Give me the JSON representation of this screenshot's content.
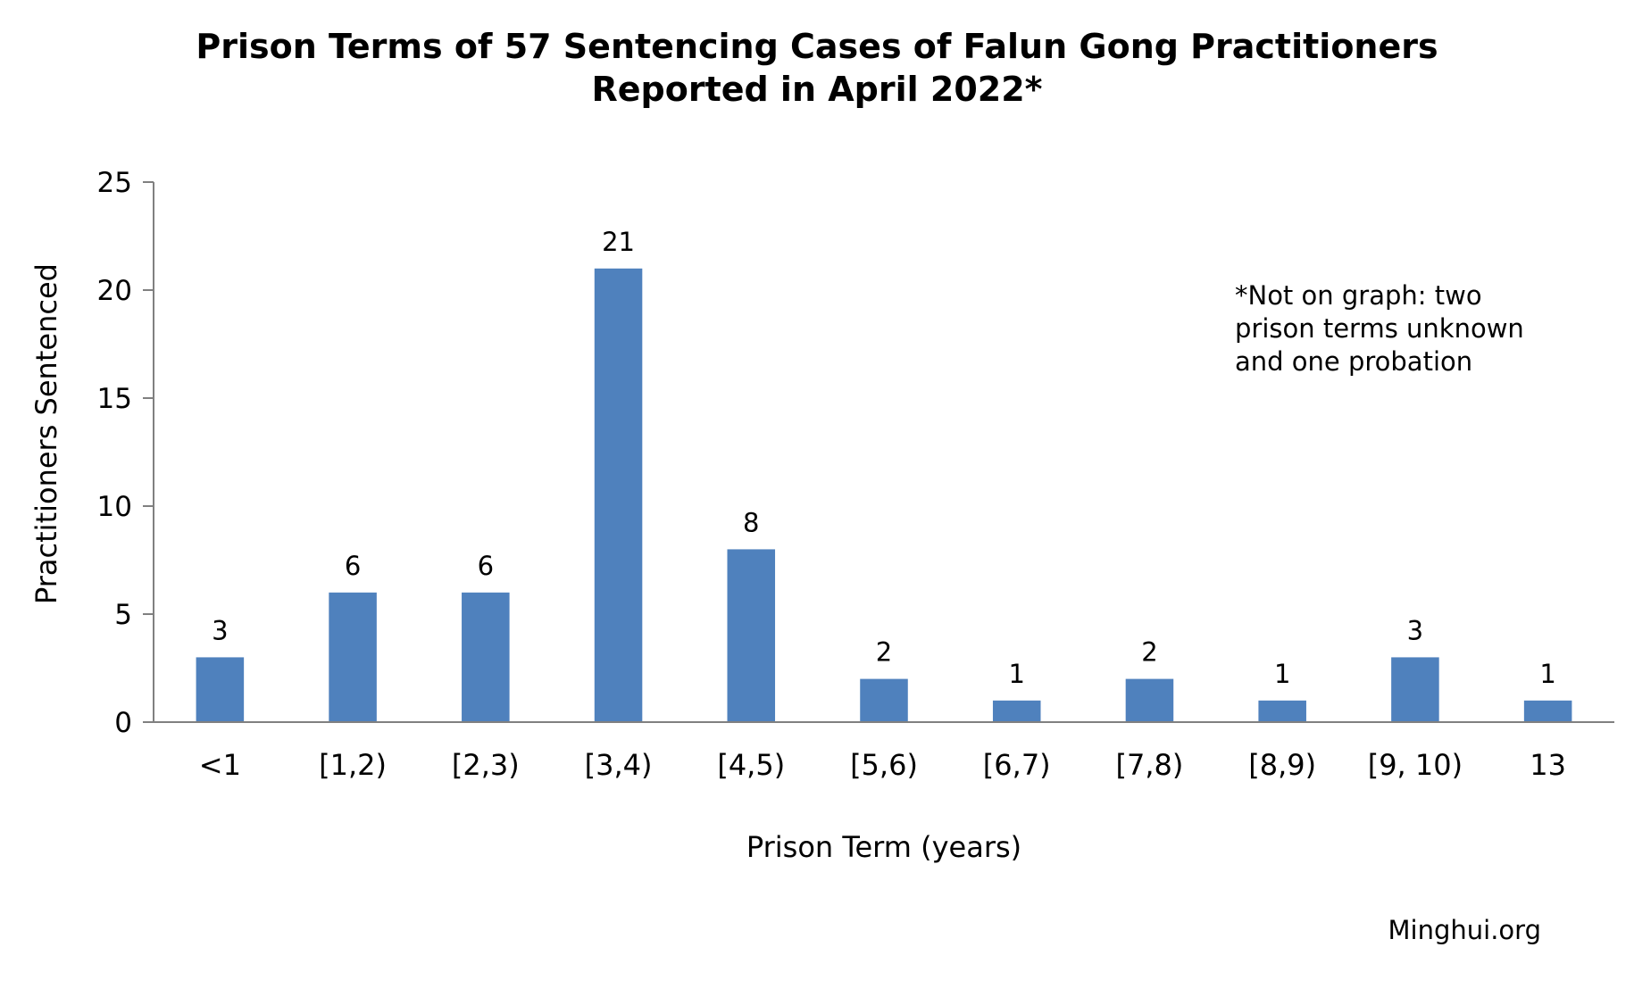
{
  "chart_data": {
    "type": "bar",
    "title_lines": [
      "Prison Terms of 57 Sentencing Cases of Falun Gong Practitioners",
      "Reported in April 2022*"
    ],
    "xlabel": "Prison Term (years)",
    "ylabel": "Practitioners Sentenced",
    "categories": [
      "<1",
      "[1,2)",
      "[2,3)",
      "[3,4)",
      "[4,5)",
      "[5,6)",
      "[6,7)",
      "[7,8)",
      "[8,9)",
      "[9, 10)",
      "13"
    ],
    "values": [
      3,
      6,
      6,
      21,
      8,
      2,
      1,
      2,
      1,
      3,
      1
    ],
    "data_labels": [
      "3",
      "6",
      "6",
      "21",
      "8",
      "2",
      "1",
      "2",
      "1",
      "3",
      "1"
    ],
    "ylim": [
      0,
      25
    ],
    "yticks": [
      0,
      5,
      10,
      15,
      20,
      25
    ],
    "ytick_labels": [
      "0",
      "5",
      "10",
      "15",
      "20",
      "25"
    ],
    "grid": false,
    "legend": "none",
    "bar_color": "#4F81BD",
    "axis_color": "#808080",
    "note_lines": [
      "*Not on graph: two",
      "prison terms unknown",
      "and one probation"
    ],
    "source": "Minghui.org"
  }
}
